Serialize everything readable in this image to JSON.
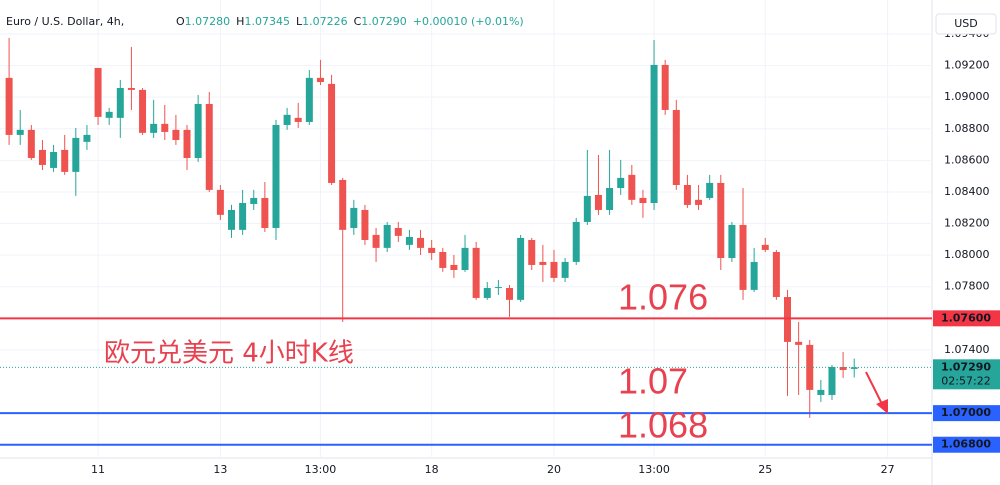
{
  "header": {
    "symbol": "Euro / U.S. Dollar, 4h,",
    "ohlc": [
      {
        "label": "O",
        "value": "1.07280"
      },
      {
        "label": "H",
        "value": "1.07345"
      },
      {
        "label": "L",
        "value": "1.07226"
      },
      {
        "label": "C",
        "value": "1.07290"
      }
    ],
    "change": "+0.00010 (+0.01%)"
  },
  "chart_data": {
    "type": "candlestick",
    "categories": [
      null,
      null,
      null,
      null,
      null,
      null,
      null,
      null,
      "11",
      null,
      null,
      null,
      null,
      null,
      null,
      null,
      null,
      null,
      null,
      "13",
      null,
      null,
      null,
      null,
      null,
      null,
      null,
      null,
      "13:00",
      null,
      null,
      null,
      null,
      null,
      null,
      null,
      null,
      null,
      "18",
      null,
      null,
      null,
      null,
      null,
      null,
      null,
      null,
      null,
      null,
      "20",
      null,
      null,
      null,
      null,
      null,
      null,
      null,
      null,
      "13:00",
      null,
      null,
      null,
      null,
      null,
      null,
      null,
      null,
      null,
      "25",
      null,
      null,
      null,
      null,
      null,
      null,
      null,
      null,
      null,
      null,
      "27"
    ],
    "open": [
      1.09122,
      1.08761,
      1.08793,
      1.08666,
      1.08552,
      1.08666,
      1.08527,
      1.08717,
      1.09185,
      1.08869,
      1.08869,
      1.09058,
      1.09046,
      1.08774,
      1.08831,
      1.08793,
      1.08793,
      1.08615,
      1.08957,
      1.08413,
      1.0816,
      1.0816,
      1.08324,
      1.08362,
      1.08172,
      1.08824,
      1.08869,
      1.08843,
      1.09122,
      1.09084,
      1.08476,
      1.08172,
      1.08286,
      1.08128,
      1.08046,
      1.08172,
      1.08065,
      1.08109,
      1.08046,
      1.0802,
      1.07938,
      1.07906,
      1.08046,
      1.07729,
      1.07792,
      1.07792,
      1.07717,
      1.08096,
      1.07957,
      1.07957,
      1.07856,
      1.07957,
      1.0821,
      1.08381,
      1.08286,
      1.08425,
      1.08508,
      1.08362,
      1.0833,
      1.09204,
      1.08919,
      1.08444,
      1.0835,
      1.08362,
      1.08457,
      1.07982,
      1.08191,
      1.0778,
      1.08065,
      1.0802,
      1.07735,
      1.07451,
      1.07432,
      1.07115,
      1.07115,
      1.07292,
      1.0728,
      null,
      null,
      null
    ],
    "high": [
      1.09375,
      1.08919,
      1.08824,
      1.08729,
      1.08698,
      1.08761,
      1.08805,
      1.08824,
      1.09185,
      1.08932,
      1.09109,
      1.09318,
      1.09058,
      1.08983,
      1.08951,
      1.08888,
      1.08824,
      1.09014,
      1.09033,
      1.08444,
      1.08318,
      1.08413,
      1.08413,
      1.08463,
      1.08856,
      1.08932,
      1.08964,
      1.09172,
      1.09236,
      1.09141,
      1.08489,
      1.0835,
      1.08318,
      1.08172,
      1.0821,
      1.0821,
      1.0816,
      1.0816,
      1.08096,
      1.08046,
      1.08001,
      1.08128,
      1.08084,
      1.0783,
      1.07843,
      1.07811,
      1.08128,
      1.08109,
      1.08065,
      1.08033,
      1.07982,
      1.08236,
      1.08666,
      1.08634,
      1.08666,
      1.08603,
      1.08571,
      1.08413,
      1.09362,
      1.09236,
      1.08983,
      1.08508,
      1.08444,
      1.08508,
      1.08508,
      1.0821,
      1.08425,
      1.08046,
      1.08109,
      1.08033,
      1.0778,
      1.07577,
      1.07463,
      1.0721,
      1.07305,
      1.07387,
      1.07345,
      null,
      null,
      null
    ],
    "low": [
      1.08698,
      1.08698,
      1.08603,
      1.08539,
      1.08527,
      1.08508,
      1.08375,
      1.08666,
      1.08824,
      1.08824,
      1.08742,
      1.08919,
      1.08761,
      1.08742,
      1.08729,
      1.08698,
      1.08539,
      1.0859,
      1.084,
      1.08223,
      1.08109,
      1.08128,
      1.08286,
      1.08147,
      1.08096,
      1.08793,
      1.08805,
      1.08824,
      1.09077,
      1.08444,
      1.07577,
      1.08128,
      1.08065,
      1.07957,
      1.0802,
      1.08084,
      1.08033,
      1.08001,
      1.0797,
      1.07894,
      1.07856,
      1.07894,
      1.07717,
      1.07717,
      1.07748,
      1.07609,
      1.07704,
      1.07906,
      1.0783,
      1.0783,
      1.0783,
      1.07938,
      1.08191,
      1.08255,
      1.08255,
      1.08381,
      1.08318,
      1.08236,
      1.08286,
      1.08888,
      1.08413,
      1.08299,
      1.08286,
      1.0835,
      1.07906,
      1.07957,
      1.07717,
      1.07767,
      1.0802,
      1.07717,
      1.07109,
      1.07115,
      1.0697,
      1.07071,
      1.07083,
      1.07223,
      1.07226,
      null,
      null,
      null
    ],
    "close": [
      1.08761,
      1.08793,
      1.08615,
      1.08571,
      1.08653,
      1.08527,
      1.08742,
      1.08761,
      1.08875,
      1.08907,
      1.09058,
      1.09046,
      1.08774,
      1.08831,
      1.0878,
      1.08729,
      1.08615,
      1.08957,
      1.08413,
      1.08255,
      1.08286,
      1.0833,
      1.08362,
      1.08172,
      1.08824,
      1.08888,
      1.08843,
      1.09122,
      1.09096,
      1.08457,
      1.0816,
      1.08299,
      1.08096,
      1.08046,
      1.08191,
      1.08122,
      1.08115,
      1.08046,
      1.08014,
      1.07919,
      1.07906,
      1.08046,
      1.07729,
      1.07792,
      1.07798,
      1.07717,
      1.08109,
      1.07938,
      1.07938,
      1.07856,
      1.07957,
      1.0821,
      1.08375,
      1.08286,
      1.08425,
      1.08489,
      1.0835,
      1.0833,
      1.09204,
      1.08919,
      1.08444,
      1.08318,
      1.08318,
      1.08457,
      1.07982,
      1.08191,
      1.0778,
      1.07957,
      1.08033,
      1.07735,
      1.07451,
      1.07432,
      1.07147,
      1.07147,
      1.07292,
      1.07273,
      1.0729,
      null,
      null,
      null
    ],
    "up_color": "#26a69a",
    "down_color": "#ef5350",
    "ylim": [
      1.06716,
      1.09615
    ],
    "yticks": [
      {
        "value": 1.094,
        "label": "1.09400"
      },
      {
        "value": 1.092,
        "label": "1.09200"
      },
      {
        "value": 1.09,
        "label": "1.09000"
      },
      {
        "value": 1.088,
        "label": "1.08800"
      },
      {
        "value": 1.086,
        "label": "1.08600"
      },
      {
        "value": 1.084,
        "label": "1.08400"
      },
      {
        "value": 1.082,
        "label": "1.08200"
      },
      {
        "value": 1.08,
        "label": "1.08000"
      },
      {
        "value": 1.078,
        "label": "1.07800"
      },
      {
        "value": 1.074,
        "label": "1.07400"
      }
    ],
    "grid": true,
    "currency": "USD",
    "hlines": [
      {
        "value": 1.076,
        "label": "1.07600",
        "color": "#f23645"
      },
      {
        "value": 1.07,
        "label": "1.07000",
        "color": "#2962ff"
      },
      {
        "value": 1.068,
        "label": "1.06800",
        "color": "#2962ff"
      }
    ],
    "last_price": {
      "value": 1.0729,
      "label": "1.07290",
      "countdown": "02:57:22",
      "color": "#26a69a"
    },
    "annotations": [
      "1.076",
      "1.07",
      "1.068",
      "欧元兑美元 4小时K线"
    ]
  }
}
